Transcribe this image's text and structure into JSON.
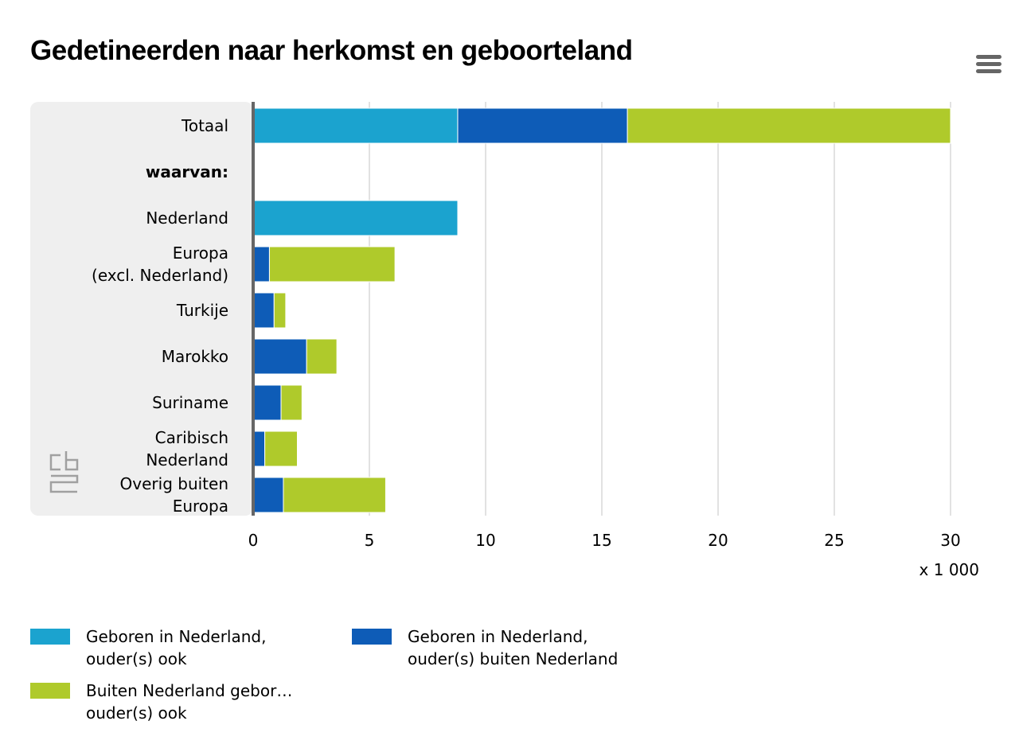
{
  "title": "Gedetineerden naar herkomst en geboorteland",
  "chart_data": {
    "type": "bar",
    "orientation": "horizontal",
    "stacked": true,
    "categories": [
      [
        "Totaal"
      ],
      [
        "waarvan:"
      ],
      [
        "Nederland"
      ],
      [
        "Europa",
        "(excl. Nederland)"
      ],
      [
        "Turkije"
      ],
      [
        "Marokko"
      ],
      [
        "Suriname"
      ],
      [
        "Caribisch",
        "Nederland"
      ],
      [
        "Overig buiten",
        "Europa"
      ]
    ],
    "bold_categories": [
      "waarvan:"
    ],
    "series": [
      {
        "name": "Geboren in Nederland, ouder(s) ook",
        "color": "#1ba3cf",
        "values": [
          8.8,
          0,
          8.8,
          0,
          0,
          0,
          0,
          0,
          0
        ]
      },
      {
        "name": "Geboren in Nederland, ouder(s) buiten Nederland",
        "color": "#0e5cb7",
        "values": [
          7.3,
          0,
          0,
          0.7,
          0.9,
          2.3,
          1.2,
          0.5,
          1.3
        ]
      },
      {
        "name": "Buiten Nederland gebor… ouder(s) ook",
        "color": "#afca2b",
        "values": [
          13.9,
          0,
          0,
          5.4,
          0.5,
          1.3,
          0.9,
          1.4,
          4.4
        ]
      }
    ],
    "xlim": [
      0,
      30
    ],
    "xticks": [
      0,
      5,
      10,
      15,
      20,
      25,
      30
    ],
    "xunit": "x 1 000",
    "grid": true,
    "legend_position": "bottom"
  },
  "legend": [
    {
      "lines": [
        "Geboren in Nederland,",
        "ouder(s) ook"
      ],
      "color": "#1ba3cf"
    },
    {
      "lines": [
        "Geboren in Nederland,",
        "ouder(s) buiten Nederland"
      ],
      "color": "#0e5cb7"
    },
    {
      "lines": [
        "Buiten Nederland gebor…",
        "ouder(s) ook"
      ],
      "color": "#afca2b"
    }
  ],
  "logo": {
    "name": "cbs-logo",
    "color": "#a0a0a0"
  }
}
